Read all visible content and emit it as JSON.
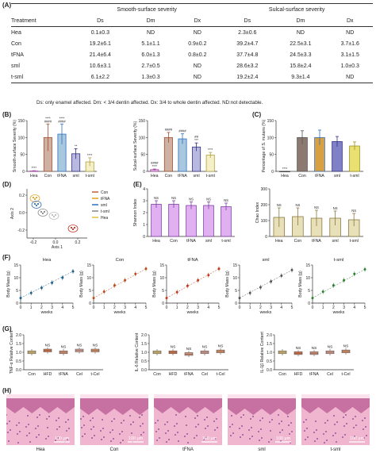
{
  "panels": {
    "A": "(A)",
    "B": "(B)",
    "C": "(C)",
    "D": "(D)",
    "E": "(E)",
    "F": "(F)",
    "G": "(G)",
    "H": "(H)"
  },
  "table": {
    "group_smooth": "Smooth-surface severity",
    "group_sulcal": "Sulcal-surface severity",
    "headers": [
      "Treatment",
      "Ds",
      "Dm",
      "Dx",
      "Ds",
      "Dm",
      "Dx"
    ],
    "rows": [
      [
        "Hea",
        "0.1±0.3",
        "ND",
        "ND",
        "2.3±0.6",
        "ND",
        "ND"
      ],
      [
        "Con",
        "19.2±6.1",
        "5.1±1.1",
        "0.9±0.2",
        "39.2±4.7",
        "22.5±3.1",
        "3.7±1.6"
      ],
      [
        "tFNA",
        "21.4±6.4",
        "6.0±1.3",
        "0.8±0.2",
        "37.7±4.8",
        "24.5±3.3",
        "3.1±1.5"
      ],
      [
        "sml",
        "10.6±3.1",
        "2.7±0.5",
        "ND",
        "28.6±3.2",
        "15.8±2.4",
        "1.0±0.3"
      ],
      [
        "t-sml",
        "6.1±2.2",
        "1.3±0.3",
        "ND",
        "19.2±2.4",
        "9.3±1.4",
        "ND"
      ]
    ],
    "footnote": "Ds: only enamel affected. Dm: < 3/4 dentin affected. Dx: 3/4 to whole dentin affected. ND:not detectable."
  },
  "groups5": [
    "Hea",
    "Con",
    "tFNA",
    "sml",
    "t-sml"
  ],
  "groups4": [
    "Con",
    "tFNA",
    "sml",
    "t-sml"
  ],
  "groupsG": [
    "Con",
    "HFD",
    "tFNA",
    "Cel",
    "t-Cel"
  ],
  "colors": {
    "Hea": "#e7c7e8",
    "Con": "#d0b0a0",
    "tFNA": "#a8c8e0",
    "sml": "#b8b8e0",
    "t-sml": "#f5f0c8",
    "Hea_line": "#a040a0",
    "Con_line": "#a05030",
    "tFNA_line": "#3070c0",
    "sml_line": "#303080",
    "t-sml_line": "#b0a040",
    "C_Con": "#8c7a70",
    "C_tFNA": "#d8a040",
    "C_sml": "#8080c8",
    "C_t-sml": "#e8e070",
    "E_shannon": "#e0b0f0",
    "E_chao": "#e8e0b8",
    "G_box": "#f4a080",
    "F_Hea": "#1f5f8b",
    "F_Con": "#b84a1c",
    "F_tFNA": "#c0391b",
    "F_sml": "#555555",
    "F_t-sml": "#2e7d32"
  },
  "chart_data": [
    {
      "panel": "B-left",
      "type": "bar",
      "categories": [
        "Hea",
        "Con",
        "tFNA",
        "sml",
        "t-sml"
      ],
      "values": [
        1,
        100,
        110,
        52,
        28
      ],
      "errors": [
        1,
        40,
        30,
        15,
        12
      ],
      "ylabel": "Smooth-surface Severity (%)",
      "yticks": [
        0,
        50,
        100,
        150
      ],
      "ylim": [
        0,
        150
      ],
      "sig": [
        "****",
        "####",
        "####",
        "**",
        "****"
      ],
      "sig2": [
        "",
        "****",
        "****",
        "",
        ""
      ]
    },
    {
      "panel": "B-right",
      "type": "bar",
      "categories": [
        "Hea",
        "Con",
        "tFNA",
        "sml",
        "t-sml"
      ],
      "values": [
        5,
        100,
        96,
        72,
        48
      ],
      "errors": [
        2,
        15,
        15,
        12,
        8
      ],
      "ylabel": "Sulcal-surface Severity (%)",
      "yticks": [
        0,
        50,
        100,
        150
      ],
      "ylim": [
        0,
        150
      ],
      "sig": [
        "****",
        "####",
        "####",
        "***",
        "****"
      ],
      "sig2": [
        "####",
        "",
        "",
        "##",
        ""
      ]
    },
    {
      "panel": "C",
      "type": "bar",
      "categories": [
        "Hea",
        "Con",
        "tFNA",
        "sml",
        "t-sml"
      ],
      "values": [
        0,
        100,
        100,
        88,
        75
      ],
      "errors": [
        0,
        20,
        22,
        15,
        12
      ],
      "ylabel": "Percentage of S. mutans (%)",
      "yticks": [
        0,
        50,
        100,
        150
      ],
      "ylim": [
        0,
        150
      ],
      "sig": [
        "****",
        "",
        "",
        "",
        ""
      ]
    },
    {
      "panel": "D",
      "type": "scatter",
      "xlabel": "Axis 1",
      "ylabel": "Axis 2",
      "xticks": [
        "-0.2",
        "0.0",
        "0.2"
      ],
      "yticks": [
        "0.2",
        "0.0",
        "-0.2"
      ],
      "legend": [
        "Con",
        "tFNA",
        "sml",
        "t-sml",
        "Hea"
      ]
    },
    {
      "panel": "E-left",
      "type": "bar",
      "categories": [
        "Hea",
        "Con",
        "tFNA",
        "sml",
        "t-sml"
      ],
      "values": [
        2.7,
        2.7,
        2.6,
        2.6,
        2.5
      ],
      "errors": [
        0.3,
        0.3,
        0.3,
        0.3,
        0.3
      ],
      "ylabel": "Shannon Index",
      "yticks": [
        0,
        1,
        2,
        3,
        4
      ],
      "ylim": [
        0,
        4
      ],
      "sig": [
        "NS",
        "NS",
        "NS",
        "NS",
        "NS"
      ]
    },
    {
      "panel": "E-right",
      "type": "bar",
      "categories": [
        "Hea",
        "Con",
        "tFNA",
        "sml",
        "t-sml"
      ],
      "values": [
        120,
        125,
        115,
        115,
        105
      ],
      "errors": [
        60,
        55,
        50,
        45,
        40
      ],
      "ylabel": "Chao Index",
      "yticks": [
        0,
        100,
        200,
        300
      ],
      "ylim": [
        0,
        300
      ],
      "sig": [
        "NS",
        "NS",
        "NS",
        "NS",
        "NS"
      ]
    },
    {
      "panel": "F",
      "type": "line",
      "titles": [
        "Hea",
        "Con",
        "tFNA",
        "sml",
        "t-sml"
      ],
      "x": [
        0,
        1,
        2,
        3,
        4,
        5
      ],
      "xlabel": "weeks",
      "ylabel": "Body Mass (g)",
      "yticks": [
        0,
        5,
        10,
        15
      ],
      "ylim": [
        0,
        15
      ],
      "xticks": [
        0,
        1,
        2,
        3,
        4,
        5
      ],
      "series": [
        {
          "values": [
            2,
            4,
            6,
            8,
            10,
            12.5
          ]
        },
        {
          "values": [
            2,
            4.5,
            7,
            9,
            11.5,
            13.5
          ]
        },
        {
          "values": [
            2,
            4.3,
            6.8,
            9,
            11,
            13.5
          ]
        },
        {
          "values": [
            2,
            4,
            6.2,
            8.5,
            10.8,
            13
          ]
        },
        {
          "values": [
            2,
            4.5,
            7,
            9,
            11.5,
            13.3
          ]
        }
      ]
    },
    {
      "panel": "G-TNF",
      "type": "box",
      "categories": [
        "Con",
        "HFD",
        "tFNA",
        "Cel",
        "t-Cel"
      ],
      "values": [
        1.0,
        1.1,
        1.0,
        1.1,
        1.1
      ],
      "ylabel": "TNF-α Relative Content",
      "yticks": [
        "0.0",
        "0.5",
        "1.0",
        "1.5",
        "2.0"
      ],
      "ylim": [
        0,
        2
      ],
      "sig": [
        "",
        "NS",
        "NS",
        "NS",
        "NS"
      ]
    },
    {
      "panel": "G-IL6",
      "type": "box",
      "categories": [
        "Con",
        "HFD",
        "tFNA",
        "Cel",
        "t-Cel"
      ],
      "values": [
        1.0,
        1.0,
        0.9,
        1.0,
        1.05
      ],
      "ylabel": "IL-6 Relative Content",
      "yticks": [
        "0.0",
        "0.5",
        "1.0",
        "1.5",
        "2.0"
      ],
      "ylim": [
        0,
        2
      ],
      "sig": [
        "",
        "NS",
        "NS",
        "NS",
        "NS"
      ]
    },
    {
      "panel": "G-IL1b",
      "type": "box",
      "categories": [
        "Con",
        "HFD",
        "tFNA",
        "Cel",
        "t-Cel"
      ],
      "values": [
        1.0,
        0.95,
        0.95,
        1.0,
        1.05
      ],
      "ylabel": "IL-1β Relative Content",
      "yticks": [
        "0.0",
        "0.5",
        "1.0",
        "1.5",
        "2.0"
      ],
      "ylim": [
        0,
        2
      ],
      "sig": [
        "",
        "NS",
        "NS",
        "NS",
        "NS"
      ]
    }
  ],
  "histology": {
    "labels": [
      "Hea",
      "Con",
      "tFNA",
      "sml",
      "t-sml"
    ],
    "scale": "100 μm"
  }
}
